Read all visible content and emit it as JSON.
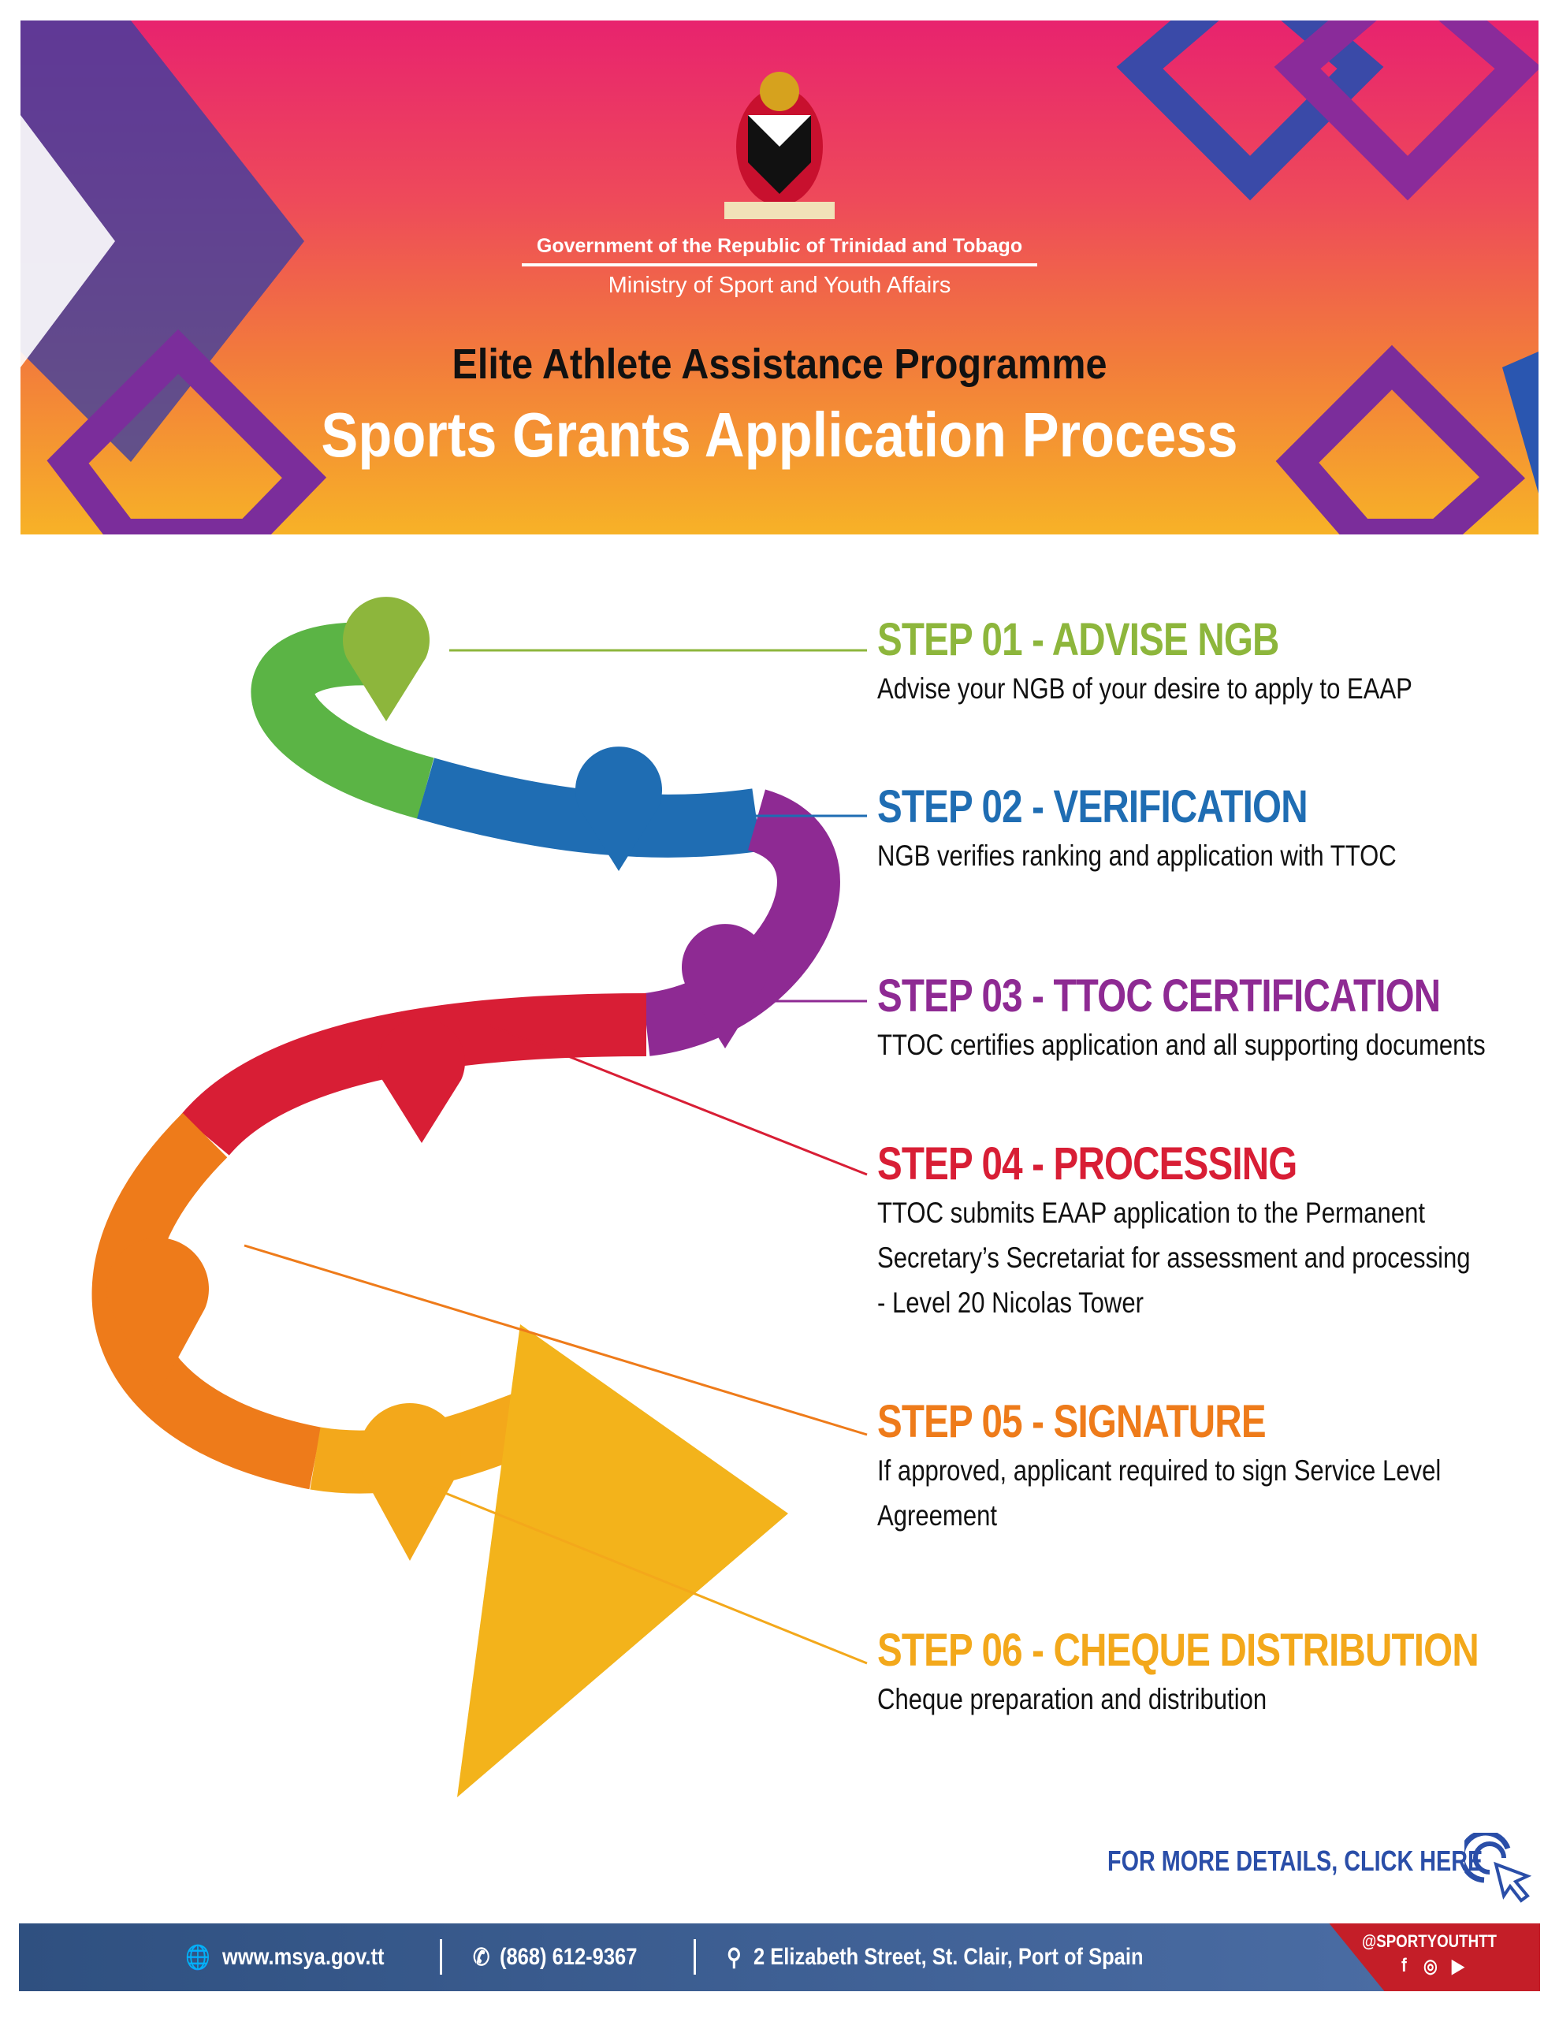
{
  "header": {
    "government": "Government of the Republic of Trinidad and Tobago",
    "ministry": "Ministry of Sport and Youth Affairs",
    "programme": "Elite Athlete Assistance Programme",
    "title": "Sports Grants Application Process"
  },
  "steps": [
    {
      "title": "STEP 01 - ADVISE NGB",
      "desc": [
        "Advise your NGB of your desire to apply to EAAP"
      ],
      "color": "#8db63c",
      "icon": "envelope-icon"
    },
    {
      "title": "STEP 02 - VERIFICATION",
      "desc": [
        "NGB verifies ranking and application with TTOC"
      ],
      "color": "#1f6db3",
      "icon": "edit-document-icon"
    },
    {
      "title": "STEP 03 - TTOC CERTIFICATION",
      "desc": [
        "TTOC certifies application and all supporting documents"
      ],
      "color": "#8e2a93",
      "icon": "checklist-icon"
    },
    {
      "title": "STEP 04 - PROCESSING",
      "desc": [
        "TTOC submits EAAP application to the Permanent",
        "Secretary’s Secretariat  for assessment and processing",
        "- Level 20 Nicolas Tower"
      ],
      "color": "#d81e35",
      "icon": "hand-document-icon"
    },
    {
      "title": "STEP 05 - SIGNATURE",
      "desc": [
        "If approved, applicant required to sign Service Level",
        "Agreement"
      ],
      "color": "#ee7b1a",
      "icon": "signature-icon"
    },
    {
      "title": "STEP 06 - CHEQUE DISTRIBUTION",
      "desc": [
        "Cheque preparation and distribution"
      ],
      "color": "#f3a81b",
      "icon": "cheque-icon"
    }
  ],
  "more_details": "FOR MORE DETAILS, CLICK HERE",
  "footer": {
    "website": "www.msya.gov.tt",
    "phone": "(868) 612-9367",
    "address": "2 Elizabeth Street, St. Clair, Port of Spain",
    "social_handle": "@SPORTYOUTHTT"
  }
}
